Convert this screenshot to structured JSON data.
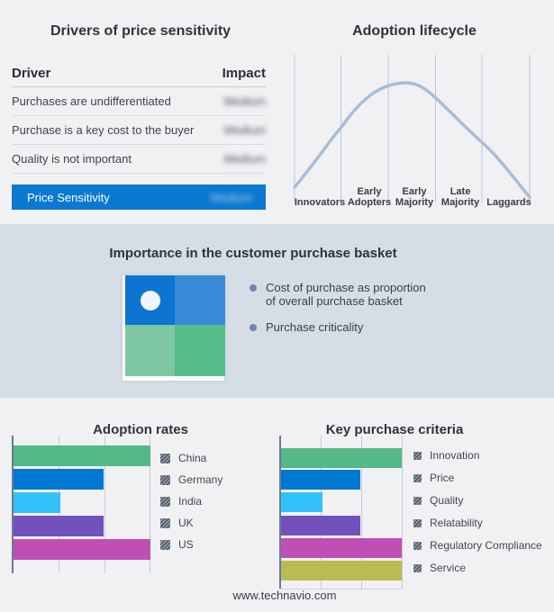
{
  "drivers_table": {
    "title": "Drivers of price sensitivity",
    "columns": {
      "driver": "Driver",
      "impact": "Impact"
    },
    "rows": [
      {
        "driver": "Purchases are undifferentiated",
        "impact": "Medium"
      },
      {
        "driver": "Purchase is a key cost to the buyer",
        "impact": "Medium"
      },
      {
        "driver": "Quality is not important",
        "impact": "Medium"
      }
    ],
    "highlight": {
      "driver": "Price Sensitivity",
      "impact": "Medium",
      "background": "#0b78d1"
    }
  },
  "lifecycle": {
    "title": "Adoption lifecycle",
    "curve_color": "#a9bdd5",
    "stages": [
      {
        "line1": "",
        "line2": "Innovators"
      },
      {
        "line1": "Early",
        "line2": "Adopters"
      },
      {
        "line1": "Early",
        "line2": "Majority"
      },
      {
        "line1": "Late",
        "line2": "Majority"
      },
      {
        "line1": "",
        "line2": "Laggards"
      }
    ]
  },
  "basket": {
    "title": "Importance in the customer purchase basket",
    "bullets": [
      "Cost of purchase as proportion of overall purchase basket",
      "Purchase criticality"
    ],
    "quadrant_colors": {
      "top_left": "#0d74d1",
      "top_right": "#3a8ada",
      "bottom_left": "#7ec7a2",
      "bottom_right": "#54bd8a"
    }
  },
  "adoption_chart": {
    "title": "Adoption rates",
    "items": [
      {
        "label": "China",
        "pct": 100,
        "color": "#52b987"
      },
      {
        "label": "Germany",
        "pct": 66,
        "color": "#0077d0"
      },
      {
        "label": "India",
        "pct": 34,
        "color": "#33c1fa"
      },
      {
        "label": "UK",
        "pct": 66,
        "color": "#7251bd"
      },
      {
        "label": "US",
        "pct": 100,
        "color": "#bf4fb5"
      }
    ]
  },
  "criteria_chart": {
    "title": "Key purchase criteria",
    "items": [
      {
        "label": "Innovation",
        "pct": 100,
        "color": "#52b987"
      },
      {
        "label": "Price",
        "pct": 66,
        "color": "#0077d0"
      },
      {
        "label": "Quality",
        "pct": 34,
        "color": "#33c1fa"
      },
      {
        "label": "Relatability",
        "pct": 66,
        "color": "#7251bd"
      },
      {
        "label": "Regulatory Compliance",
        "pct": 100,
        "color": "#bf4fb5"
      },
      {
        "label": "Service",
        "pct": 100,
        "color": "#bcba52"
      }
    ]
  },
  "footer": {
    "website": "www.technavio.com"
  },
  "chart_data": [
    {
      "type": "table",
      "title": "Drivers of price sensitivity",
      "columns": [
        "Driver",
        "Impact"
      ],
      "rows": [
        [
          "Purchases are undifferentiated",
          "Medium"
        ],
        [
          "Purchase is a key cost to the buyer",
          "Medium"
        ],
        [
          "Quality is not important",
          "Medium"
        ],
        [
          "Price Sensitivity",
          "Medium"
        ]
      ]
    },
    {
      "type": "line",
      "title": "Adoption lifecycle",
      "categories": [
        "Innovators",
        "Early Adopters",
        "Early Majority",
        "Late Majority",
        "Laggards"
      ],
      "description": "Bell curve peaking near Early Majority",
      "grid": "vertical section dividers"
    },
    {
      "type": "bar",
      "title": "Adoption rates",
      "orientation": "horizontal",
      "categories": [
        "China",
        "Germany",
        "India",
        "UK",
        "US"
      ],
      "values": [
        3,
        2,
        1,
        2,
        3
      ],
      "xlim": [
        0,
        3
      ],
      "legend_position": "right"
    },
    {
      "type": "bar",
      "title": "Key purchase criteria",
      "orientation": "horizontal",
      "categories": [
        "Innovation",
        "Price",
        "Quality",
        "Relatability",
        "Regulatory Compliance",
        "Service"
      ],
      "values": [
        3,
        2,
        1,
        2,
        3,
        3
      ],
      "xlim": [
        0,
        3
      ],
      "legend_position": "right"
    }
  ]
}
